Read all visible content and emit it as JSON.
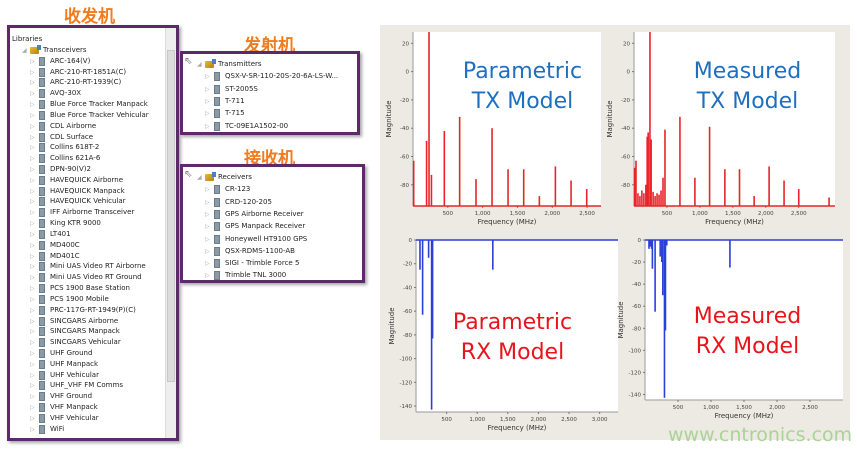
{
  "labels": {
    "transceivers_cn": "收发机",
    "transmitters_cn": "发射机",
    "receivers_cn": "接收机"
  },
  "libraries": {
    "header": "Libraries",
    "root": "Transceivers",
    "items": [
      "ARC-164(V)",
      "ARC-210-RT-1851A(C)",
      "ARC-210-RT-1939(C)",
      "AVQ-30X",
      "Blue Force Tracker Manpack",
      "Blue Force Tracker Vehicular",
      "CDL Airborne",
      "CDL Surface",
      "Collins 618T-2",
      "Collins 621A-6",
      "DPN-90(V)2",
      "HAVEQUICK Airborne",
      "HAVEQUICK Manpack",
      "HAVEQUICK Vehicular",
      "IFF Airborne Transceiver",
      "King KTR 9000",
      "LT401",
      "MD400C",
      "MD401C",
      "Mini UAS Video RT Airborne",
      "Mini UAS Video RT Ground",
      "PCS 1900 Base Station",
      "PCS 1900 Mobile",
      "PRC-117G-RT-1949(P)(C)",
      "SINCGARS Airborne",
      "SINCGARS Manpack",
      "SINCGARS Vehicular",
      "UHF Ground",
      "UHF Manpack",
      "UHF Vehicular",
      "UHF_VHF FM Comms",
      "VHF Ground",
      "VHF Manpack",
      "VHF Vehicular",
      "WiFi"
    ]
  },
  "transmitters": {
    "root": "Transmitters",
    "items": [
      "QSX-V-SR-110-20S-20-6A-LS-W...",
      "ST-2005S",
      "T-711",
      "T-715",
      "TC-09E1A1502-00"
    ]
  },
  "receivers": {
    "root": "Receivers",
    "items": [
      "CR-123",
      "CRD-120-205",
      "GPS Airborne Receiver",
      "GPS Manpack Receiver",
      "Honeywell HT9100 GPS",
      "QSX-RDMS-1100-AB",
      "SIGI - Trimble Force 5",
      "Trimble TNL 3000"
    ]
  },
  "watermark": "www.cntronics.com",
  "chart_data": [
    {
      "type": "bar",
      "overlay": [
        "Parametric",
        "TX Model"
      ],
      "overlay_color": "#1f6fc0",
      "color": "#e8242a",
      "xlabel": "Frequency (MHz)",
      "ylabel": "Magnitude",
      "xlim": [
        0,
        2700
      ],
      "ylim": [
        -95,
        28
      ],
      "baseline": -95,
      "xticks": [
        500,
        1000,
        1500,
        2000,
        2500
      ],
      "xtick_labels": [
        "500",
        "1,000",
        "1,500",
        "2,000",
        "2,500"
      ],
      "yticks": [
        20,
        0,
        -20,
        -40,
        -60,
        -80
      ],
      "x": [
        10,
        195,
        230,
        265,
        450,
        670,
        905,
        1135,
        1365,
        1590,
        1815,
        2045,
        2270,
        2495
      ],
      "y": [
        -63,
        -49,
        28,
        -73,
        -42,
        -32,
        -76,
        -40,
        -69,
        -69,
        -88,
        -67,
        -77,
        -83
      ]
    },
    {
      "type": "bar",
      "overlay": [
        "Measured",
        "TX Model"
      ],
      "overlay_color": "#1f6fc0",
      "color": "#e8242a",
      "xlabel": "Frequency (MHz)",
      "ylabel": "Magnitude",
      "xlim": [
        0,
        3050
      ],
      "ylim": [
        -95,
        28
      ],
      "baseline": -95,
      "xticks": [
        500,
        1000,
        1500,
        2000,
        2500
      ],
      "xtick_labels": [
        "500",
        "1,000",
        "1,500",
        "2,000",
        "2,500"
      ],
      "yticks": [
        20,
        0,
        -20,
        -40,
        -60,
        -80
      ],
      "x": [
        10,
        30,
        60,
        90,
        120,
        150,
        180,
        200,
        215,
        242,
        260,
        290,
        320,
        350,
        380,
        410,
        440,
        470,
        697,
        924,
        1147,
        1379,
        1601,
        1823,
        2050,
        2277,
        2500,
        2960
      ],
      "y": [
        -68,
        -63,
        -86,
        -88,
        -84,
        -86,
        -80,
        -46,
        -43,
        28,
        -48,
        -85,
        -88,
        -86,
        -87,
        -84,
        -75,
        -41,
        -32,
        -75,
        -39,
        -69,
        -69,
        -88,
        -67,
        -77,
        -83,
        -89
      ]
    },
    {
      "type": "bar",
      "overlay": [
        "Parametric",
        "RX Model"
      ],
      "overlay_color": "#e8141c",
      "color": "#2a3fd8",
      "xlabel": "Frequency (MHz)",
      "ylabel": "Magnitude",
      "xlim": [
        0,
        3300
      ],
      "ylim": [
        -145,
        0
      ],
      "baseline": 0,
      "xticks": [
        500,
        1000,
        1500,
        2000,
        2500,
        3000
      ],
      "xtick_labels": [
        "500",
        "1,000",
        "1,500",
        "2,000",
        "2,500",
        "3,000"
      ],
      "yticks": [
        0,
        -20,
        -40,
        -60,
        -80,
        -100,
        -120,
        -140
      ],
      "x": [
        65,
        108,
        206,
        255,
        271,
        1255
      ],
      "y": [
        -25,
        -63,
        -15,
        -143,
        -83,
        -25
      ]
    },
    {
      "type": "bar",
      "overlay": [
        "Measured",
        "RX Model"
      ],
      "overlay_color": "#e8141c",
      "color": "#2a3fd8",
      "xlabel": "Frequency (MHz)",
      "ylabel": "Magnitude",
      "xlim": [
        0,
        3000
      ],
      "ylim": [
        -145,
        0
      ],
      "baseline": 0,
      "xticks": [
        500,
        1000,
        1500,
        2000,
        2500
      ],
      "xtick_labels": [
        "500",
        "1,000",
        "1,500",
        "2,000",
        "2,500"
      ],
      "yticks": [
        0,
        -20,
        -40,
        -60,
        -80,
        -100,
        -120,
        -140
      ],
      "x": [
        60,
        80,
        100,
        112,
        153,
        230,
        255,
        270,
        295,
        310,
        330,
        1287
      ],
      "y": [
        -8,
        -6,
        -8,
        -26,
        -65,
        -15,
        -20,
        -50,
        -143,
        -82,
        -5,
        -25
      ]
    }
  ]
}
